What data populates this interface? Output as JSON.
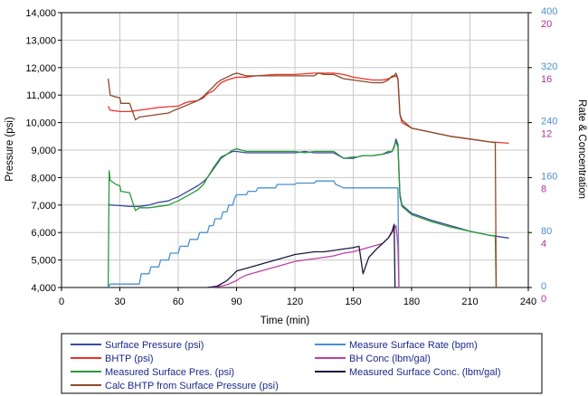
{
  "chart_data": {
    "type": "line",
    "xlabel": "Time (min)",
    "ylabel": "Pressure (psi)",
    "y2label": "Rate & Concentration",
    "xlim": [
      0,
      240
    ],
    "xticks": [
      0,
      30,
      60,
      90,
      120,
      150,
      180,
      210,
      240
    ],
    "ylim": [
      4000,
      14000
    ],
    "yticks": [
      4000,
      5000,
      6000,
      7000,
      8000,
      9000,
      10000,
      11000,
      12000,
      13000,
      14000
    ],
    "ytick_labels": [
      "4,000",
      "5,000",
      "6,000",
      "7,000",
      "8,000",
      "9,000",
      "10,000",
      "11,000",
      "12,000",
      "13,000",
      "14,000"
    ],
    "rate_axis": {
      "lim": [
        0,
        400
      ],
      "ticks": [
        0,
        80,
        160,
        240,
        320,
        400
      ],
      "labels": [
        "0",
        "80",
        "160",
        "240",
        "320",
        "400"
      ],
      "color": "#4a90d0"
    },
    "conc_axis": {
      "lim": [
        0,
        20
      ],
      "ticks": [
        0,
        4,
        8,
        12,
        16,
        20
      ],
      "labels": [
        "0",
        "4",
        "8",
        "12",
        "16",
        "20"
      ],
      "color": "#b0309a"
    },
    "grid": true,
    "legend_position": "bottom",
    "series": [
      {
        "name": "Surface Pressure (psi)",
        "color": "#3a4aa0",
        "axis": "pressure",
        "legend_col": 0,
        "legend_row": 0,
        "x": [
          24,
          25,
          30,
          35,
          40,
          45,
          50,
          55,
          58,
          60,
          65,
          70,
          73,
          75,
          78,
          80,
          82,
          85,
          88,
          90,
          95,
          100,
          110,
          120,
          125,
          130,
          135,
          140,
          145,
          150,
          152,
          155,
          160,
          165,
          168,
          170,
          171,
          172,
          173,
          174,
          175,
          180,
          190,
          200,
          210,
          220,
          230
        ],
        "y": [
          7050,
          7000,
          6980,
          6950,
          6950,
          7000,
          7100,
          7150,
          7250,
          7300,
          7500,
          7700,
          7850,
          8000,
          8300,
          8500,
          8700,
          8850,
          8950,
          8950,
          8900,
          8900,
          8900,
          8900,
          8950,
          8900,
          8900,
          8900,
          8700,
          8700,
          8750,
          8800,
          8800,
          8850,
          8900,
          8950,
          9100,
          9400,
          9200,
          7400,
          7000,
          6700,
          6450,
          6250,
          6050,
          5900,
          5800
        ]
      },
      {
        "name": "BHTP (psi)",
        "color": "#e8322a",
        "axis": "pressure",
        "legend_col": 0,
        "legend_row": 1,
        "x": [
          24,
          25,
          30,
          35,
          40,
          45,
          50,
          55,
          60,
          63,
          65,
          70,
          73,
          75,
          78,
          80,
          82,
          85,
          90,
          95,
          100,
          110,
          120,
          130,
          140,
          145,
          150,
          155,
          160,
          165,
          168,
          170,
          172,
          173,
          174,
          175,
          180,
          190,
          200,
          210,
          220,
          230
        ],
        "y": [
          10600,
          10450,
          10400,
          10400,
          10450,
          10500,
          10550,
          10580,
          10600,
          10700,
          10750,
          10800,
          10900,
          11050,
          11150,
          11300,
          11450,
          11550,
          11650,
          11650,
          11700,
          11750,
          11750,
          11800,
          11800,
          11750,
          11650,
          11600,
          11550,
          11550,
          11600,
          11650,
          11700,
          11600,
          10300,
          10000,
          9800,
          9650,
          9500,
          9400,
          9300,
          9250
        ]
      },
      {
        "name": "Measured Surface Pres. (psi)",
        "color": "#2a9a3a",
        "axis": "pressure",
        "legend_col": 0,
        "legend_row": 2,
        "x": [
          24,
          24.5,
          25,
          28,
          30,
          30.5,
          35,
          37,
          38,
          40,
          45,
          50,
          55,
          58,
          60,
          65,
          70,
          73,
          75,
          78,
          80,
          82,
          85,
          88,
          90,
          95,
          100,
          110,
          120,
          125,
          130,
          135,
          140,
          145,
          150,
          152,
          155,
          160,
          165,
          168,
          170,
          171,
          172,
          173,
          174,
          175,
          180,
          190,
          200,
          210,
          220,
          222,
          223,
          223.5
        ],
        "y": [
          4000,
          8250,
          7900,
          7750,
          7700,
          7500,
          7450,
          7000,
          6800,
          6900,
          6900,
          6950,
          7000,
          7100,
          7150,
          7350,
          7550,
          7750,
          8000,
          8350,
          8550,
          8750,
          8850,
          9000,
          9050,
          8950,
          8950,
          8950,
          8950,
          8900,
          8950,
          8950,
          8950,
          8700,
          8750,
          8750,
          8800,
          8800,
          8850,
          8950,
          8950,
          9150,
          9300,
          9100,
          7300,
          6950,
          6650,
          6400,
          6200,
          6050,
          5900,
          5880,
          5880,
          4000
        ]
      },
      {
        "name": "Calc BHTP from Surface Pressure (psi)",
        "color": "#8b4a2a",
        "axis": "pressure",
        "legend_col": 0,
        "legend_row": 3,
        "x": [
          24,
          24.5,
          25,
          27,
          30,
          30.5,
          35,
          37,
          38,
          40,
          45,
          50,
          55,
          58,
          60,
          65,
          70,
          73,
          75,
          78,
          80,
          82,
          85,
          88,
          90,
          95,
          100,
          110,
          120,
          130,
          132,
          135,
          140,
          145,
          150,
          155,
          160,
          165,
          168,
          170,
          171,
          172,
          173,
          174,
          175,
          180,
          190,
          200,
          210,
          220,
          222,
          223,
          223.5
        ],
        "y": [
          11600,
          11300,
          11000,
          10950,
          10900,
          10700,
          10700,
          10300,
          10100,
          10200,
          10250,
          10300,
          10350,
          10450,
          10500,
          10650,
          10800,
          10950,
          11100,
          11300,
          11450,
          11550,
          11650,
          11750,
          11800,
          11700,
          11700,
          11700,
          11700,
          11700,
          11800,
          11750,
          11750,
          11600,
          11550,
          11500,
          11450,
          11450,
          11550,
          11700,
          11700,
          11800,
          11600,
          10300,
          10100,
          9800,
          9650,
          9500,
          9400,
          9300,
          9280,
          9280,
          4000
        ]
      },
      {
        "name": "Measure Surface Rate (bpm)",
        "color": "#4a90d0",
        "axis": "rate",
        "legend_col": 1,
        "legend_row": 0,
        "x": [
          24,
          25,
          40,
          41,
          45,
          46,
          50,
          51,
          55,
          56,
          60,
          61,
          65,
          66,
          70,
          71,
          75,
          76,
          78,
          79,
          82,
          83,
          85,
          86,
          88,
          89,
          90,
          95,
          96,
          100,
          101,
          110,
          111,
          120,
          121,
          130,
          131,
          140,
          141,
          145,
          150,
          155,
          160,
          165,
          170,
          172,
          173,
          173.5
        ],
        "y": [
          0,
          5,
          5,
          20,
          20,
          30,
          30,
          40,
          40,
          50,
          50,
          60,
          60,
          70,
          70,
          80,
          80,
          90,
          90,
          100,
          100,
          110,
          110,
          120,
          120,
          130,
          135,
          135,
          140,
          140,
          145,
          145,
          150,
          150,
          152,
          152,
          155,
          155,
          150,
          145,
          145,
          145,
          145,
          145,
          145,
          145,
          145,
          0
        ]
      },
      {
        "name": "BH Conc (lbm/gal)",
        "color": "#c040a0",
        "axis": "conc",
        "legend_col": 1,
        "legend_row": 1,
        "x": [
          75,
          80,
          85,
          90,
          92,
          95,
          100,
          105,
          110,
          115,
          120,
          125,
          130,
          135,
          140,
          145,
          150,
          155,
          160,
          165,
          168,
          170,
          171,
          172,
          173,
          173.5
        ],
        "y": [
          0,
          0.05,
          0.2,
          0.5,
          0.7,
          0.9,
          1.1,
          1.3,
          1.5,
          1.7,
          1.9,
          2.0,
          2.1,
          2.2,
          2.3,
          2.5,
          2.6,
          2.8,
          3.0,
          3.2,
          3.6,
          4.0,
          4.3,
          4.5,
          3.0,
          0
        ]
      },
      {
        "name": "Measured Surface Conc. (lbm/gal)",
        "color": "#1a1a40",
        "axis": "conc",
        "legend_col": 1,
        "legend_row": 2,
        "x": [
          75,
          80,
          85,
          88,
          90,
          95,
          100,
          105,
          110,
          115,
          120,
          125,
          130,
          135,
          140,
          145,
          150,
          153,
          155,
          158,
          160,
          162,
          165,
          168,
          170,
          171,
          171.5
        ],
        "y": [
          0,
          0.1,
          0.5,
          0.9,
          1.2,
          1.4,
          1.6,
          1.8,
          2.0,
          2.2,
          2.4,
          2.5,
          2.6,
          2.6,
          2.7,
          2.8,
          2.9,
          3.0,
          1.0,
          2.2,
          2.5,
          2.8,
          3.2,
          3.6,
          4.1,
          4.6,
          0
        ]
      }
    ]
  }
}
